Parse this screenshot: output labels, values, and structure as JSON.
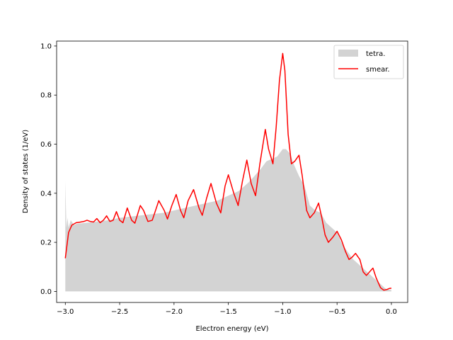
{
  "chart_data": {
    "type": "area",
    "title": "",
    "xlabel": "Electron energy (eV)",
    "ylabel": "Density of states (1/eV)",
    "xlim": [
      -3.08,
      0.15
    ],
    "ylim": [
      -0.045,
      1.02
    ],
    "x_ticks": [
      -3.0,
      -2.5,
      -2.0,
      -1.5,
      -1.0,
      -0.5,
      0.0
    ],
    "x_tick_labels": [
      "−3.0",
      "−2.5",
      "−2.0",
      "−1.5",
      "−1.0",
      "−0.5",
      "0.0"
    ],
    "y_ticks": [
      0.0,
      0.2,
      0.4,
      0.6,
      0.8,
      1.0
    ],
    "y_tick_labels": [
      "0.0",
      "0.2",
      "0.4",
      "0.6",
      "0.8",
      "1.0"
    ],
    "grid": false,
    "legend_position": "top-right",
    "series": [
      {
        "name": "tetra.",
        "kind": "filled-area",
        "color": "#d3d3d3",
        "points": [
          [
            -3.0,
            0.0
          ],
          [
            -3.0,
            0.45
          ],
          [
            -2.99,
            0.26
          ],
          [
            -2.98,
            0.3
          ],
          [
            -2.97,
            0.26
          ],
          [
            -2.95,
            0.29
          ],
          [
            -2.92,
            0.27
          ],
          [
            -2.9,
            0.275
          ],
          [
            -2.8,
            0.28
          ],
          [
            -2.7,
            0.285
          ],
          [
            -2.6,
            0.29
          ],
          [
            -2.5,
            0.3
          ],
          [
            -2.4,
            0.305
          ],
          [
            -2.3,
            0.31
          ],
          [
            -2.2,
            0.315
          ],
          [
            -2.1,
            0.32
          ],
          [
            -2.0,
            0.33
          ],
          [
            -1.9,
            0.34
          ],
          [
            -1.8,
            0.35
          ],
          [
            -1.7,
            0.36
          ],
          [
            -1.6,
            0.37
          ],
          [
            -1.5,
            0.39
          ],
          [
            -1.4,
            0.41
          ],
          [
            -1.3,
            0.45
          ],
          [
            -1.2,
            0.5
          ],
          [
            -1.15,
            0.53
          ],
          [
            -1.1,
            0.54
          ],
          [
            -1.05,
            0.55
          ],
          [
            -1.0,
            0.58
          ],
          [
            -0.97,
            0.58
          ],
          [
            -0.93,
            0.56
          ],
          [
            -0.9,
            0.52
          ],
          [
            -0.85,
            0.47
          ],
          [
            -0.8,
            0.43
          ],
          [
            -0.75,
            0.35
          ],
          [
            -0.7,
            0.33
          ],
          [
            -0.65,
            0.32
          ],
          [
            -0.6,
            0.28
          ],
          [
            -0.55,
            0.26
          ],
          [
            -0.5,
            0.24
          ],
          [
            -0.45,
            0.19
          ],
          [
            -0.4,
            0.16
          ],
          [
            -0.35,
            0.13
          ],
          [
            -0.3,
            0.11
          ],
          [
            -0.25,
            0.09
          ],
          [
            -0.2,
            0.07
          ],
          [
            -0.15,
            0.05
          ],
          [
            -0.1,
            0.03
          ],
          [
            -0.05,
            0.01
          ],
          [
            0.0,
            0.005
          ],
          [
            0.0,
            0.0
          ]
        ]
      },
      {
        "name": "smear.",
        "kind": "line",
        "color": "#ff0000",
        "points": [
          [
            -3.0,
            0.135
          ],
          [
            -2.97,
            0.24
          ],
          [
            -2.94,
            0.27
          ],
          [
            -2.9,
            0.28
          ],
          [
            -2.87,
            0.282
          ],
          [
            -2.83,
            0.285
          ],
          [
            -2.8,
            0.29
          ],
          [
            -2.77,
            0.285
          ],
          [
            -2.74,
            0.283
          ],
          [
            -2.71,
            0.297
          ],
          [
            -2.68,
            0.28
          ],
          [
            -2.65,
            0.29
          ],
          [
            -2.62,
            0.308
          ],
          [
            -2.59,
            0.285
          ],
          [
            -2.56,
            0.29
          ],
          [
            -2.53,
            0.325
          ],
          [
            -2.5,
            0.29
          ],
          [
            -2.47,
            0.28
          ],
          [
            -2.43,
            0.34
          ],
          [
            -2.39,
            0.29
          ],
          [
            -2.36,
            0.278
          ],
          [
            -2.31,
            0.35
          ],
          [
            -2.28,
            0.33
          ],
          [
            -2.24,
            0.285
          ],
          [
            -2.2,
            0.29
          ],
          [
            -2.14,
            0.37
          ],
          [
            -2.09,
            0.33
          ],
          [
            -2.06,
            0.295
          ],
          [
            -2.02,
            0.35
          ],
          [
            -1.98,
            0.395
          ],
          [
            -1.94,
            0.33
          ],
          [
            -1.91,
            0.3
          ],
          [
            -1.87,
            0.37
          ],
          [
            -1.82,
            0.415
          ],
          [
            -1.77,
            0.34
          ],
          [
            -1.74,
            0.31
          ],
          [
            -1.7,
            0.38
          ],
          [
            -1.66,
            0.44
          ],
          [
            -1.61,
            0.36
          ],
          [
            -1.57,
            0.32
          ],
          [
            -1.53,
            0.43
          ],
          [
            -1.5,
            0.475
          ],
          [
            -1.45,
            0.4
          ],
          [
            -1.41,
            0.35
          ],
          [
            -1.37,
            0.45
          ],
          [
            -1.33,
            0.535
          ],
          [
            -1.29,
            0.44
          ],
          [
            -1.25,
            0.39
          ],
          [
            -1.21,
            0.52
          ],
          [
            -1.16,
            0.66
          ],
          [
            -1.13,
            0.58
          ],
          [
            -1.09,
            0.52
          ],
          [
            -1.06,
            0.67
          ],
          [
            -1.03,
            0.86
          ],
          [
            -1.0,
            0.97
          ],
          [
            -0.98,
            0.9
          ],
          [
            -0.95,
            0.64
          ],
          [
            -0.92,
            0.52
          ],
          [
            -0.89,
            0.53
          ],
          [
            -0.85,
            0.555
          ],
          [
            -0.82,
            0.47
          ],
          [
            -0.78,
            0.33
          ],
          [
            -0.75,
            0.3
          ],
          [
            -0.71,
            0.32
          ],
          [
            -0.67,
            0.36
          ],
          [
            -0.64,
            0.3
          ],
          [
            -0.61,
            0.23
          ],
          [
            -0.58,
            0.2
          ],
          [
            -0.54,
            0.22
          ],
          [
            -0.5,
            0.245
          ],
          [
            -0.46,
            0.21
          ],
          [
            -0.42,
            0.16
          ],
          [
            -0.39,
            0.13
          ],
          [
            -0.36,
            0.14
          ],
          [
            -0.33,
            0.155
          ],
          [
            -0.29,
            0.13
          ],
          [
            -0.26,
            0.08
          ],
          [
            -0.23,
            0.065
          ],
          [
            -0.2,
            0.08
          ],
          [
            -0.17,
            0.095
          ],
          [
            -0.14,
            0.055
          ],
          [
            -0.1,
            0.015
          ],
          [
            -0.07,
            0.005
          ],
          [
            -0.04,
            0.008
          ],
          [
            -0.02,
            0.012
          ],
          [
            0.0,
            0.013
          ]
        ]
      }
    ]
  }
}
